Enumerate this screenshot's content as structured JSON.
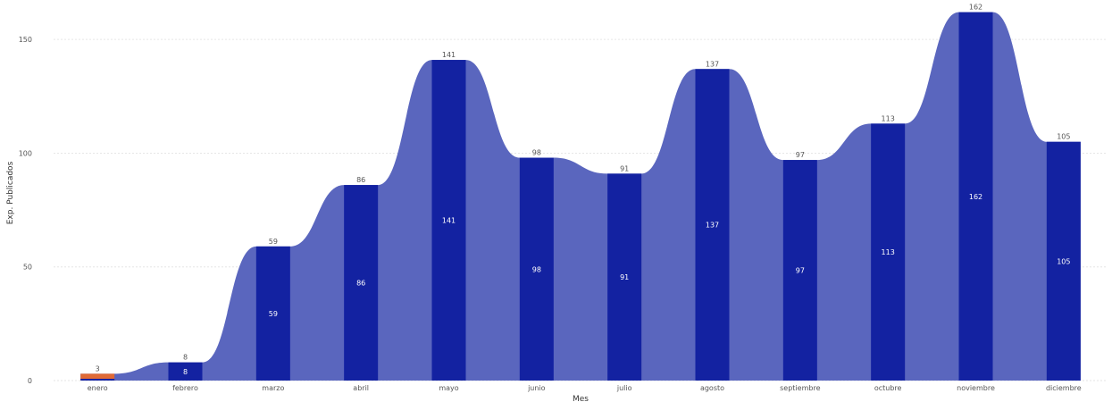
{
  "chart_data": {
    "type": "bar",
    "title": "",
    "xlabel": "Mes",
    "ylabel": "Exp. Publicados",
    "categories": [
      "enero",
      "febrero",
      "marzo",
      "abril",
      "mayo",
      "junio",
      "julio",
      "agosto",
      "septiembre",
      "octubre",
      "noviembre",
      "diciembre"
    ],
    "values": [
      3,
      8,
      59,
      86,
      141,
      98,
      91,
      137,
      97,
      113,
      162,
      105
    ],
    "ylim": [
      0,
      165
    ],
    "yticks": [
      0,
      50,
      100,
      150
    ],
    "grid": true,
    "highlight_index": 0,
    "colors": {
      "bar": "#1322a1",
      "ribbon": "#5a66be",
      "highlight": "#e06a36",
      "grid": "#e6e6e6",
      "text": "#555555"
    }
  }
}
